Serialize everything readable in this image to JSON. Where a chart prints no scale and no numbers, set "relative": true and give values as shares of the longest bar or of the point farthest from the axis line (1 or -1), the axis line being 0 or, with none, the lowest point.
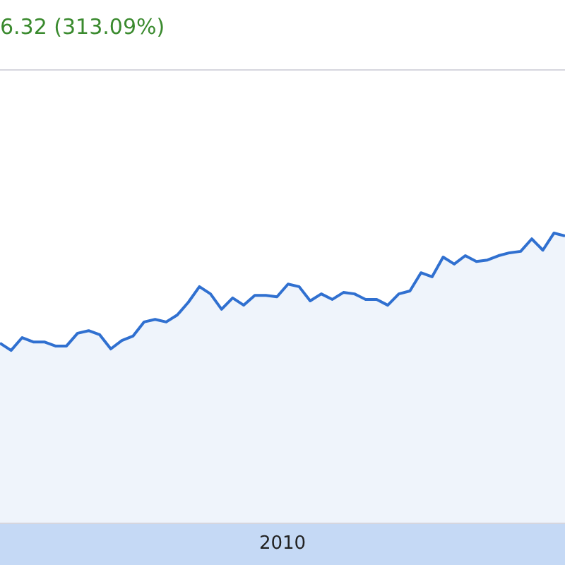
{
  "chart_data": {
    "type": "area",
    "title": "6.32 (313.09%)",
    "relative": true,
    "annotations": [
      "2010"
    ],
    "categories": [
      null,
      null,
      null,
      null,
      null,
      null,
      null,
      null,
      null,
      null,
      null,
      null,
      null,
      null,
      null,
      null,
      null,
      null,
      null,
      null,
      null,
      null,
      null,
      null,
      null,
      null,
      null,
      null,
      null,
      null,
      null,
      null,
      null,
      null,
      null,
      null,
      null,
      null,
      null,
      null,
      null,
      null,
      null,
      null,
      null,
      null,
      null,
      null,
      null,
      null,
      null,
      null
    ],
    "series": [
      {
        "color": "#3070d0",
        "values": [
          0.62,
          0.595,
          0.639,
          0.624,
          0.624,
          0.61,
          0.61,
          0.654,
          0.663,
          0.649,
          0.6,
          0.629,
          0.644,
          0.693,
          0.702,
          0.693,
          0.717,
          0.761,
          0.815,
          0.79,
          0.737,
          0.776,
          0.751,
          0.785,
          0.785,
          0.78,
          0.824,
          0.815,
          0.766,
          0.79,
          0.771,
          0.795,
          0.79,
          0.771,
          0.771,
          0.751,
          0.79,
          0.8,
          0.863,
          0.849,
          0.917,
          0.893,
          0.922,
          0.902,
          0.907,
          0.922,
          0.932,
          0.937,
          0.98,
          0.941,
          1,
          0.99
        ]
      }
    ]
  }
}
